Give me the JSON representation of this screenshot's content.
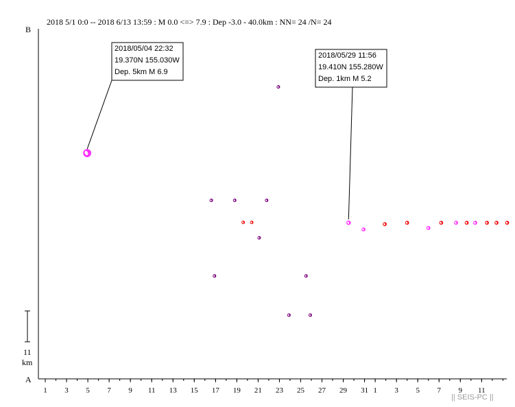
{
  "header": {
    "title": "2018 5/1 0:0 -- 2018 6/13 13:59 : M 0.0 <=> 7.9 : Dep -3.0 - 40.0km : NN= 24 /N= 24"
  },
  "axis": {
    "top_label": "B",
    "bottom_label": "A",
    "scale_value": "11",
    "scale_unit": "km"
  },
  "watermark": "|| SEIS-PC ||",
  "callouts": [
    {
      "line1": "2018/05/04 22:32",
      "line2": "19.370N  155.030W",
      "line3": "Dep. 5km    M 6.9"
    },
    {
      "line1": "2018/05/29 11:56",
      "line2": "19.410N  155.280W",
      "line3": "Dep. 1km    M 5.2"
    }
  ],
  "chart_data": {
    "type": "scatter",
    "title": "2018 5/1 0:0 -- 2018 6/13 13:59 : M 0.0 <=> 7.9 : Dep -3.0 - 40.0km : NN= 24 /N= 24",
    "xlabel": "",
    "ylabel": "",
    "x_unit": "days since 2018-05-01",
    "x_tick_labels": [
      "1",
      "3",
      "5",
      "7",
      "9",
      "11",
      "13",
      "15",
      "17",
      "19",
      "21",
      "23",
      "25",
      "27",
      "29",
      "31",
      "1",
      "3",
      "5",
      "7",
      "9",
      "11"
    ],
    "x_tick_days": [
      0,
      2,
      4,
      6,
      8,
      10,
      12,
      14,
      16,
      18,
      20,
      22,
      24,
      26,
      28,
      30,
      31,
      33,
      35,
      37,
      39,
      41
    ],
    "xlim": [
      -1,
      43.5
    ],
    "y_axis": "distance along profile A-B",
    "ylim": [
      0,
      1
    ],
    "scale_bar_km": 11,
    "grid": false,
    "points": [
      {
        "date": "2018-05-04 22:32",
        "t": 3.94,
        "pos": 0.645,
        "mag": 6.9,
        "color": "#ff33ff"
      },
      {
        "date": "2018-05-16",
        "t": 15.6,
        "pos": 0.51,
        "mag": 4.1,
        "color": "#7a007a"
      },
      {
        "date": "2018-05-16",
        "t": 15.9,
        "pos": 0.294,
        "mag": 4.1,
        "color": "#7a007a"
      },
      {
        "date": "2018-05-18",
        "t": 17.8,
        "pos": 0.51,
        "mag": 4.6,
        "color": "#7a007a"
      },
      {
        "date": "2018-05-19",
        "t": 18.6,
        "pos": 0.447,
        "mag": 4.0,
        "color": "#ee1111"
      },
      {
        "date": "2018-05-20",
        "t": 19.4,
        "pos": 0.447,
        "mag": 4.0,
        "color": "#ee1111"
      },
      {
        "date": "2018-05-21",
        "t": 20.1,
        "pos": 0.403,
        "mag": 4.0,
        "color": "#7a007a"
      },
      {
        "date": "2018-05-21",
        "t": 20.8,
        "pos": 0.51,
        "mag": 4.0,
        "color": "#7a007a"
      },
      {
        "date": "2018-05-22",
        "t": 21.9,
        "pos": 0.834,
        "mag": 4.0,
        "color": "#7a007a"
      },
      {
        "date": "2018-05-23",
        "t": 22.9,
        "pos": 0.182,
        "mag": 4.0,
        "color": "#7a007a"
      },
      {
        "date": "2018-05-25",
        "t": 24.5,
        "pos": 0.294,
        "mag": 4.0,
        "color": "#7a007a"
      },
      {
        "date": "2018-05-25",
        "t": 24.9,
        "pos": 0.182,
        "mag": 4.0,
        "color": "#7a007a"
      },
      {
        "date": "2018-05-29 11:56",
        "t": 28.5,
        "pos": 0.446,
        "mag": 5.2,
        "color": "#ff33ff"
      },
      {
        "date": "2018-05-30",
        "t": 29.9,
        "pos": 0.427,
        "mag": 5.0,
        "color": "#ff33ff"
      },
      {
        "date": "2018-06-01",
        "t": 31.9,
        "pos": 0.442,
        "mag": 5.0,
        "color": "#ee1111"
      },
      {
        "date": "2018-06-03",
        "t": 34.0,
        "pos": 0.446,
        "mag": 5.0,
        "color": "#ee1111"
      },
      {
        "date": "2018-06-05",
        "t": 36.0,
        "pos": 0.431,
        "mag": 5.0,
        "color": "#ff33ff"
      },
      {
        "date": "2018-06-06",
        "t": 37.2,
        "pos": 0.446,
        "mag": 5.0,
        "color": "#ee1111"
      },
      {
        "date": "2018-06-08",
        "t": 38.6,
        "pos": 0.446,
        "mag": 5.0,
        "color": "#ff33ff"
      },
      {
        "date": "2018-06-09",
        "t": 39.6,
        "pos": 0.446,
        "mag": 5.0,
        "color": "#ee1111"
      },
      {
        "date": "2018-06-10",
        "t": 40.4,
        "pos": 0.446,
        "mag": 5.0,
        "color": "#ff33ff"
      },
      {
        "date": "2018-06-11",
        "t": 41.5,
        "pos": 0.446,
        "mag": 5.0,
        "color": "#ee1111"
      },
      {
        "date": "2018-06-12",
        "t": 42.4,
        "pos": 0.446,
        "mag": 5.0,
        "color": "#ee1111"
      },
      {
        "date": "2018-06-13",
        "t": 43.4,
        "pos": 0.446,
        "mag": 5.0,
        "color": "#ee1111"
      }
    ]
  }
}
